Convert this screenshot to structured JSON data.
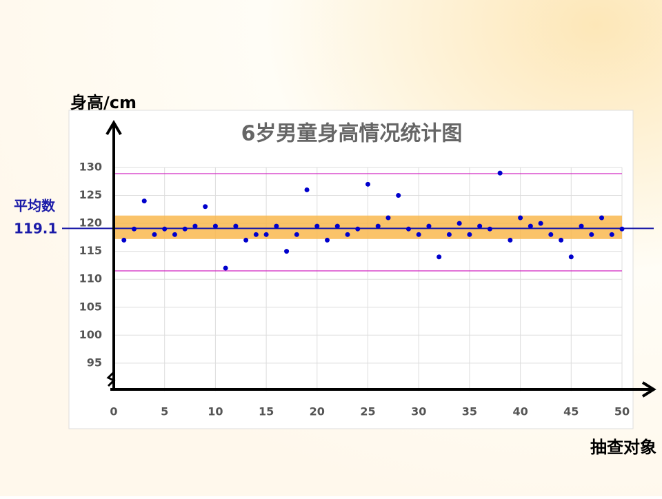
{
  "chart_data": {
    "type": "scatter",
    "title": "6岁男童身高情况统计图",
    "y_label": "身高/cm",
    "x_label": "抽查对象",
    "mean_label": "平均数",
    "mean": 119.1,
    "band": [
      117.2,
      121.4
    ],
    "reference_lines": [
      128.9,
      111.5
    ],
    "color": "#0000cc",
    "grid": true,
    "xlim": [
      0,
      50
    ],
    "xticks": [
      0,
      5,
      10,
      15,
      20,
      25,
      30,
      35,
      40,
      45,
      50
    ],
    "ylim": [
      90,
      130
    ],
    "yticks": [
      95,
      100,
      105,
      110,
      115,
      120,
      125,
      130
    ],
    "x": [
      1,
      2,
      3,
      4,
      5,
      6,
      7,
      8,
      9,
      10,
      11,
      12,
      13,
      14,
      15,
      16,
      17,
      18,
      19,
      20,
      21,
      22,
      23,
      24,
      25,
      26,
      27,
      28,
      29,
      30,
      31,
      32,
      33,
      34,
      35,
      36,
      37,
      38,
      39,
      40,
      41,
      42,
      43,
      44,
      45,
      46,
      47,
      48,
      49,
      50
    ],
    "values": [
      117,
      119,
      124,
      118,
      119,
      118,
      119,
      119.5,
      123,
      119.5,
      112,
      119.5,
      117,
      118,
      118,
      119.5,
      115,
      118,
      126,
      119.5,
      117,
      119.5,
      118,
      119,
      127,
      119.5,
      121,
      125,
      119,
      118,
      119.5,
      114,
      118,
      120,
      118,
      119.5,
      119,
      129,
      117,
      121,
      119.5,
      120,
      118,
      117,
      114,
      119.5,
      118,
      121,
      118,
      119
    ]
  }
}
